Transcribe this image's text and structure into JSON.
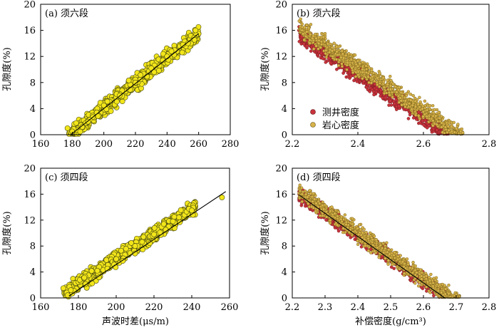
{
  "colors": {
    "core_point": "#f2e61a",
    "core_point_edge": "#4a4a10",
    "log_point": "#c8323c",
    "core_density_point": "#d6b24a",
    "fit_line": "#000000"
  },
  "chart_data": [
    {
      "type": "scatter",
      "title": "(a) 须六段",
      "xlabel": "",
      "ylabel": "孔隙度(%)",
      "xlim": [
        160,
        280
      ],
      "ylim": [
        0,
        20
      ],
      "xticks": [
        "160",
        "180",
        "200",
        "220",
        "240",
        "260",
        "280"
      ],
      "yticks": [
        "0",
        "4",
        "8",
        "12",
        "16",
        "20"
      ],
      "grid": false,
      "series": [
        {
          "style": "yellow",
          "trend": {
            "x0": 178,
            "x1": 260,
            "slope": 0.19,
            "intercept": -33.9
          },
          "spread": 0.85,
          "count": 700,
          "seed": 11,
          "points": [
            [
              177,
              1.0
            ],
            [
              180,
              0.5
            ],
            [
              190,
              2.0
            ],
            [
              200,
              4.5
            ],
            [
              210,
              6.0
            ],
            [
              220,
              8.0
            ],
            [
              230,
              10.2
            ],
            [
              240,
              12.0
            ],
            [
              250,
              13.8
            ],
            [
              258,
              16.0
            ]
          ]
        }
      ],
      "fit_line": {
        "x": [
          179,
          260
        ],
        "y": [
          0,
          15.5
        ]
      }
    },
    {
      "type": "scatter",
      "title": "(b) 须六段",
      "xlabel": "",
      "ylabel": "孔隙度(%)",
      "xlim": [
        2.2,
        2.8
      ],
      "ylim": [
        0,
        20
      ],
      "xticks": [
        "2.2",
        "2.4",
        "2.6",
        "2.8"
      ],
      "yticks": [
        "0",
        "4",
        "8",
        "12",
        "16",
        "20"
      ],
      "grid": false,
      "legend": {
        "position": "lower-left",
        "entries": [
          "测井密度",
          "岩心密度"
        ]
      },
      "series": [
        {
          "name": "测井密度",
          "style": "log",
          "trend": {
            "x0": 2.22,
            "x1": 2.68,
            "slope": -33.5,
            "intercept": 89.6
          },
          "spread": 0.9,
          "count": 900,
          "seed": 23,
          "points": [
            [
              2.22,
              16.0
            ],
            [
              2.3,
              13.0
            ],
            [
              2.4,
              9.5
            ],
            [
              2.5,
              6.0
            ],
            [
              2.6,
              2.6
            ],
            [
              2.66,
              0.5
            ]
          ]
        },
        {
          "name": "岩心密度",
          "style": "core",
          "trend": {
            "x0": 2.22,
            "x1": 2.72,
            "slope": -33.5,
            "intercept": 90.8
          },
          "spread": 1.0,
          "count": 1000,
          "seed": 37,
          "points": [
            [
              2.23,
              16.0
            ],
            [
              2.3,
              15.5
            ],
            [
              2.4,
              10.5
            ],
            [
              2.5,
              7.5
            ],
            [
              2.6,
              3.5
            ],
            [
              2.72,
              0.3
            ]
          ]
        }
      ]
    },
    {
      "type": "scatter",
      "title": "(c) 须四段",
      "xlabel": "声波时差(μs/m)",
      "ylabel": "孔隙度(%)",
      "xlim": [
        160,
        260
      ],
      "ylim": [
        0,
        20
      ],
      "xticks": [
        "160",
        "180",
        "200",
        "220",
        "240",
        "260"
      ],
      "yticks": [
        "0",
        "4",
        "8",
        "12",
        "16",
        "20"
      ],
      "grid": false,
      "series": [
        {
          "style": "yellow",
          "trend": {
            "x0": 172,
            "x1": 242,
            "slope": 0.19,
            "intercept": -31.9
          },
          "spread": 0.85,
          "count": 600,
          "seed": 53,
          "points": [
            [
              172,
              1.5
            ],
            [
              176,
              1.2
            ],
            [
              190,
              4.2
            ],
            [
              200,
              6.0
            ],
            [
              210,
              8.0
            ],
            [
              220,
              9.8
            ],
            [
              230,
              11.8
            ],
            [
              240,
              13.5
            ],
            [
              256,
              15.5
            ]
          ]
        }
      ],
      "fit_line": {
        "x": [
          175,
          258
        ],
        "y": [
          0.3,
          16.4
        ]
      }
    },
    {
      "type": "scatter",
      "title": "(d) 须四段",
      "xlabel": "补偿密度(g/cm³)",
      "ylabel": "孔隙度(%)",
      "xlim": [
        2.2,
        2.8
      ],
      "ylim": [
        0,
        20
      ],
      "xticks": [
        "2.2",
        "2.3",
        "2.4",
        "2.5",
        "2.6",
        "2.7",
        "2.8"
      ],
      "yticks": [
        "0",
        "4",
        "8",
        "12",
        "16",
        "20"
      ],
      "grid": false,
      "series": [
        {
          "name": "测井密度",
          "style": "log",
          "trend": {
            "x0": 2.22,
            "x1": 2.67,
            "slope": -35.2,
            "intercept": 94.1
          },
          "spread": 0.8,
          "count": 900,
          "seed": 71,
          "points": [
            [
              2.23,
              15.5
            ],
            [
              2.3,
              13.0
            ],
            [
              2.4,
              9.5
            ],
            [
              2.5,
              6.0
            ],
            [
              2.6,
              2.5
            ],
            [
              2.66,
              0.4
            ]
          ]
        },
        {
          "name": "岩心密度",
          "style": "core",
          "trend": {
            "x0": 2.22,
            "x1": 2.71,
            "slope": -35.2,
            "intercept": 94.5
          },
          "spread": 0.95,
          "count": 1000,
          "seed": 89,
          "points": [
            [
              2.23,
              16.0
            ],
            [
              2.35,
              12.5
            ],
            [
              2.45,
              9.5
            ],
            [
              2.55,
              6.0
            ],
            [
              2.65,
              2.0
            ],
            [
              2.7,
              0.5
            ]
          ]
        }
      ],
      "fit_line": {
        "x": [
          2.22,
          2.665
        ],
        "y": [
          15.9,
          0
        ]
      }
    }
  ]
}
